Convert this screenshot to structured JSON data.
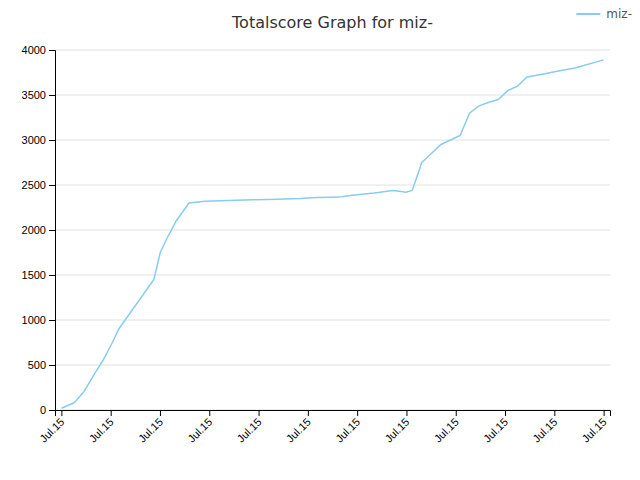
{
  "chart_data": {
    "type": "line",
    "title": "Totalscore Graph for miz-",
    "x": [
      0,
      4,
      7,
      10,
      13,
      16,
      18,
      21,
      23,
      25,
      27,
      29,
      30,
      31,
      33,
      36,
      40,
      45,
      50,
      55,
      60,
      65,
      70,
      75,
      80,
      85,
      88,
      90,
      92,
      95,
      98,
      100,
      102,
      104,
      106,
      108,
      110,
      113,
      116,
      119,
      122,
      125,
      128,
      131,
      134,
      137,
      140,
      143,
      146,
      149,
      152,
      155,
      158,
      161,
      164,
      167,
      170
    ],
    "series": [
      {
        "name": "miz-",
        "color": "#88ccee",
        "values": [
          20,
          80,
          200,
          380,
          550,
          750,
          900,
          1050,
          1150,
          1250,
          1350,
          1450,
          1600,
          1750,
          1900,
          2100,
          2300,
          2320,
          2325,
          2330,
          2335,
          2340,
          2345,
          2350,
          2360,
          2365,
          2370,
          2380,
          2390,
          2400,
          2410,
          2420,
          2430,
          2440,
          2430,
          2420,
          2440,
          2750,
          2850,
          2950,
          3000,
          3050,
          3300,
          3380,
          3420,
          3450,
          3550,
          3600,
          3700,
          3720,
          3740,
          3760,
          3780,
          3800,
          3830,
          3860,
          3890
        ]
      }
    ],
    "xlim": [
      -2,
      172
    ],
    "xticks": [
      {
        "value": 0,
        "label": "Jul.15"
      },
      {
        "value": 15.454545454545455,
        "label": "Jul.15"
      },
      {
        "value": 30.90909090909091,
        "label": "Jul.15"
      },
      {
        "value": 46.36363636363637,
        "label": "Jul.15"
      },
      {
        "value": 61.81818181818182,
        "label": "Jul.15"
      },
      {
        "value": 77.27272727272727,
        "label": "Jul.15"
      },
      {
        "value": 92.72727272727273,
        "label": "Jul.15"
      },
      {
        "value": 108.18181818181819,
        "label": "Jul.15"
      },
      {
        "value": 123.63636363636364,
        "label": "Jul.15"
      },
      {
        "value": 139.0909090909091,
        "label": "Jul.15"
      },
      {
        "value": 154.54545454545453,
        "label": "Jul.15"
      },
      {
        "value": 170,
        "label": "Jul.15"
      }
    ],
    "ylim": [
      0,
      4000
    ],
    "yticks": [
      0,
      500,
      1000,
      1500,
      2000,
      2500,
      3000,
      3500,
      4000
    ],
    "grid": true,
    "legend": "upper right"
  }
}
